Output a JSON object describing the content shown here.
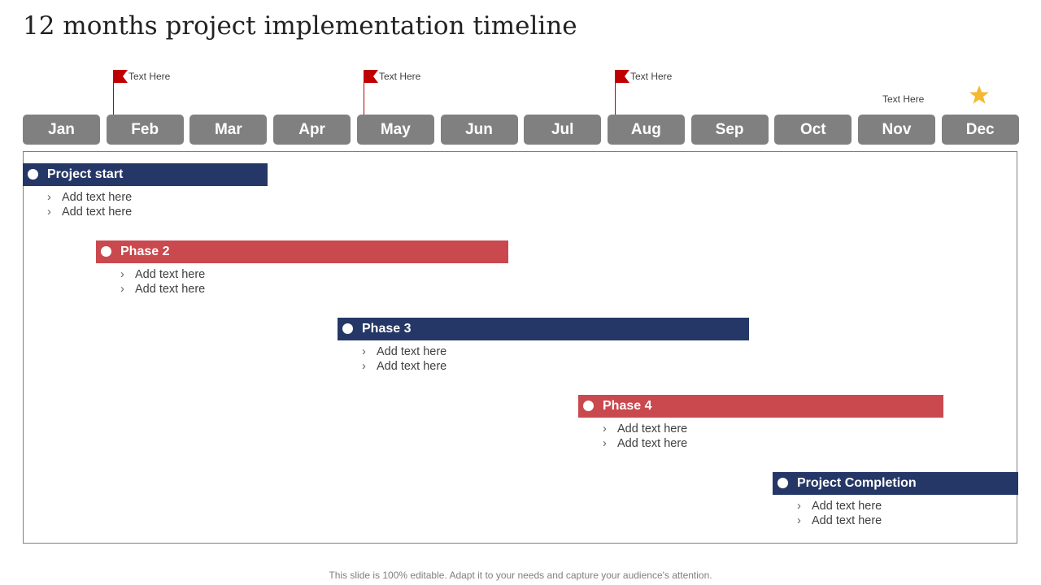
{
  "title": "12 months project implementation timeline",
  "months": [
    "Jan",
    "Feb",
    "Mar",
    "Apr",
    "May",
    "Jun",
    "Jul",
    "Aug",
    "Sep",
    "Oct",
    "Nov",
    "Dec"
  ],
  "milestones": {
    "feb_flag": "Text Here",
    "may_flag": "Text Here",
    "aug_flag": "Text Here",
    "nov_note": "Text Here",
    "dec_icon": "star-icon"
  },
  "phases": [
    {
      "label": "Project start",
      "color": "#253766",
      "bullets": [
        "Add text here",
        "Add text here"
      ]
    },
    {
      "label": "Phase 2",
      "color": "#c9494e",
      "bullets": [
        "Add text here",
        "Add text here"
      ]
    },
    {
      "label": "Phase 3",
      "color": "#253766",
      "bullets": [
        "Add text here",
        "Add text here"
      ]
    },
    {
      "label": "Phase 4",
      "color": "#c9494e",
      "bullets": [
        "Add text here",
        "Add text here"
      ]
    },
    {
      "label": "Project Completion",
      "color": "#253766",
      "bullets": [
        "Add text here",
        "Add text here"
      ]
    }
  ],
  "colors": {
    "navy": "#253766",
    "red": "#c9494e",
    "month_box": "#808080",
    "flag": "#c00000",
    "star": "#f5b82e"
  },
  "footer": "This slide is 100% editable. Adapt it to your needs and capture your audience's attention."
}
